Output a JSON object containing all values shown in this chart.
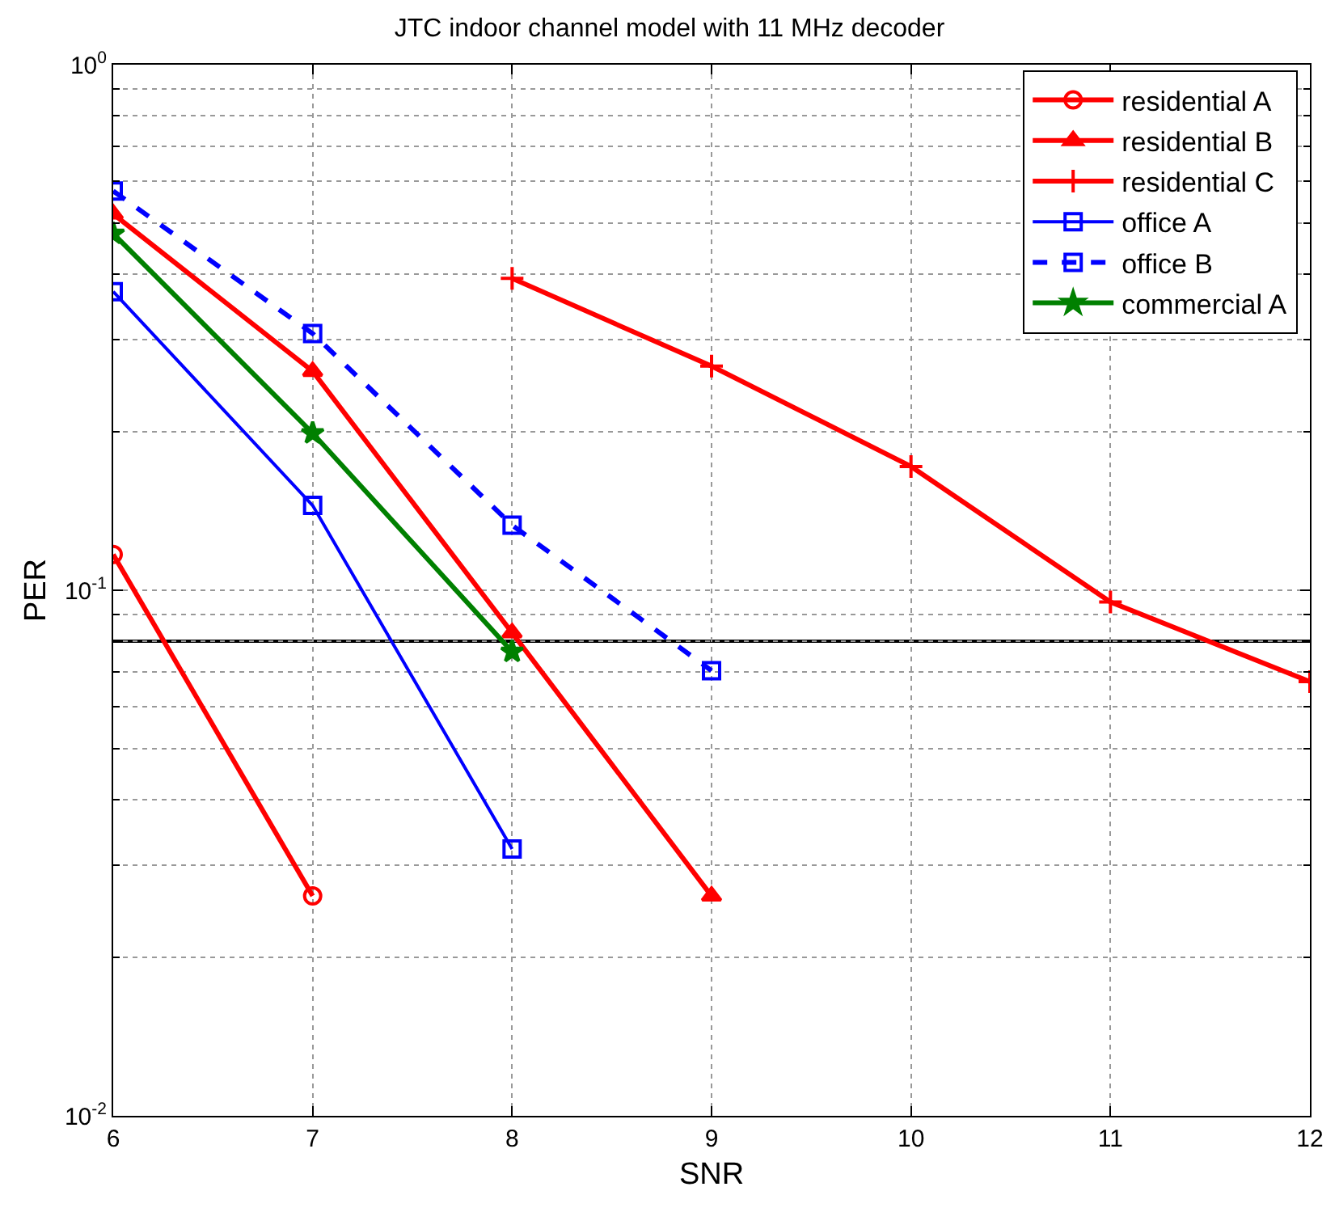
{
  "chart_data": {
    "type": "line",
    "title": "JTC indoor channel model with 11 MHz decoder",
    "xlabel": "SNR",
    "ylabel": "PER",
    "log": "y",
    "grid": true,
    "legend": "top right",
    "xlim": [
      6,
      12
    ],
    "xticks": [
      6,
      7,
      8,
      9,
      10,
      11,
      12
    ],
    "ylim": [
      0.01,
      1
    ],
    "yticks": [
      {
        "value": 0.01,
        "label": "10$^{-2}$"
      },
      {
        "value": 0.1,
        "label": "10$^{-1}$"
      },
      {
        "value": 1,
        "label": "10$^{0}$"
      }
    ],
    "series": [
      {
        "name": "residential A",
        "color": "#ff0000",
        "marker": "circle",
        "line_style": "solid",
        "x": [
          6,
          7
        ],
        "values": [
          0.117,
          0.0262
        ]
      },
      {
        "name": "residential B",
        "color": "#ff0000",
        "marker": "triangle",
        "line_style": "solid",
        "x": [
          6,
          7,
          8,
          9
        ],
        "values": [
          0.52,
          0.261,
          0.083,
          0.0262
        ]
      },
      {
        "name": "residential C",
        "color": "#ff0000",
        "marker": "cross",
        "line_style": "solid",
        "x": [
          8,
          9,
          10,
          11,
          12
        ],
        "values": [
          0.392,
          0.267,
          0.172,
          0.095,
          0.067
        ]
      },
      {
        "name": "office A",
        "color": "#0000ff",
        "marker": "square",
        "line_style": "solid",
        "x": [
          6,
          7,
          8
        ],
        "values": [
          0.37,
          0.145,
          0.0322
        ]
      },
      {
        "name": "office B",
        "color": "#0000ff",
        "marker": "square",
        "line_style": "dashed",
        "x": [
          6,
          7,
          8,
          9
        ],
        "values": [
          0.575,
          0.308,
          0.133,
          0.0703
        ]
      },
      {
        "name": "commercial A",
        "color": "#008000",
        "marker": "star",
        "line_style": "solid",
        "x": [
          6,
          7,
          8
        ],
        "values": [
          0.477,
          0.199,
          0.0764
        ]
      }
    ],
    "ref_lines": [
      {
        "axis": "y",
        "value": 0.08,
        "color": "#000000",
        "line_style": "solid"
      }
    ]
  }
}
